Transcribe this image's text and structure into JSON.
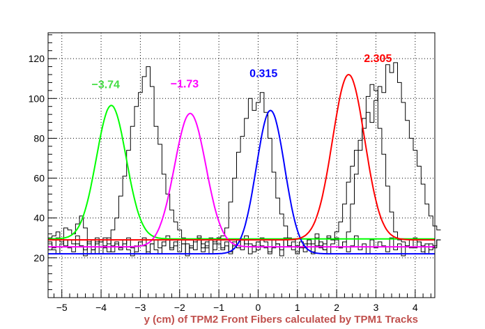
{
  "chart_data": {
    "type": "line",
    "title": "",
    "xlabel": "y (cm) of TPM2 Front Fibers calculated by TPM1 Tracks",
    "ylabel": "",
    "xlim": [
      -5.35,
      4.5
    ],
    "ylim": [
      0,
      133
    ],
    "grid": true,
    "x_ticks": [
      -5,
      -4,
      -3,
      -2,
      -1,
      0,
      1,
      2,
      3,
      4
    ],
    "y_ticks": [
      20,
      40,
      60,
      80,
      100,
      120
    ],
    "histogram": {
      "bin_start": -5.35,
      "bin_width": 0.1,
      "series": [
        {
          "color": "#000000",
          "values": [
            30,
            31,
            33,
            29,
            35,
            34,
            32,
            37,
            41,
            35,
            27,
            24,
            30,
            28,
            30,
            27,
            34,
            40,
            51,
            61,
            74,
            86,
            96,
            103,
            111,
            116,
            106,
            86,
            77,
            62,
            52,
            44,
            38,
            34,
            30,
            27,
            25,
            29,
            31,
            27,
            25,
            30,
            28,
            30,
            31,
            35,
            48,
            60,
            73,
            81,
            90,
            100,
            94,
            98,
            103,
            93,
            80,
            63,
            50,
            42,
            36,
            30,
            29,
            26,
            28,
            23,
            29,
            27,
            32,
            25,
            27,
            31,
            29,
            30,
            25,
            28,
            33,
            47,
            62,
            74,
            90,
            101,
            107,
            104,
            85,
            72,
            56,
            43,
            33,
            29,
            28,
            26,
            25,
            30,
            28,
            26,
            22,
            27,
            25,
            29
          ]
        },
        {
          "color": "#000000",
          "values": [
            27,
            25,
            30,
            28,
            26,
            29,
            27,
            31,
            26,
            24,
            28,
            22,
            27,
            29,
            25,
            23,
            26,
            28,
            24,
            27,
            30,
            25,
            23,
            28,
            26,
            22,
            27,
            29,
            25,
            28,
            31,
            24,
            26,
            29,
            27,
            22,
            25,
            28,
            30,
            23,
            26,
            29,
            24,
            27,
            25,
            28,
            22,
            26,
            29,
            24,
            31,
            27,
            23,
            28,
            26,
            25,
            22,
            29,
            27,
            24,
            30,
            26,
            28,
            23,
            25,
            27,
            29,
            22,
            26,
            28,
            24,
            30,
            29,
            33,
            38,
            47,
            58,
            66,
            74,
            79,
            85,
            93,
            88,
            99,
            106,
            103,
            117,
            113,
            118,
            108,
            98,
            89,
            80,
            74,
            66,
            57,
            47,
            41,
            36,
            34
          ]
        },
        {
          "color": "#000000",
          "values": [
            28,
            24,
            22,
            27,
            29,
            25,
            23,
            27,
            26,
            21,
            29,
            24,
            28,
            22,
            26,
            30,
            23,
            27,
            25,
            29,
            24,
            21,
            26,
            28,
            30,
            23,
            27,
            24,
            22,
            26,
            29,
            25,
            28,
            23,
            27,
            21,
            26,
            24,
            29,
            25,
            28,
            22,
            27,
            30,
            24,
            26,
            23,
            28,
            25,
            29,
            27,
            22,
            26,
            24,
            30,
            28,
            23,
            25,
            27,
            21,
            29,
            26,
            24,
            22,
            28,
            25,
            27,
            23,
            30,
            26,
            24,
            22,
            27,
            29,
            25,
            28,
            23,
            26,
            31,
            24,
            27,
            22,
            29,
            25,
            28,
            26,
            23,
            30,
            24,
            27,
            21,
            26,
            29,
            25,
            28,
            23,
            27,
            24,
            26,
            29
          ]
        }
      ]
    },
    "series": [
      {
        "color": "#00ff00",
        "amplitude": 67,
        "mean": -3.74,
        "sigma": 0.38,
        "baseline": 29.5
      },
      {
        "color": "#ff00ff",
        "amplitude": 67,
        "mean": -1.73,
        "sigma": 0.4,
        "baseline": 25.5
      },
      {
        "color": "#0000ff",
        "amplitude": 72,
        "mean": 0.315,
        "sigma": 0.36,
        "baseline": 22
      },
      {
        "color": "#ff0000",
        "amplitude": 83,
        "mean": 2.305,
        "sigma": 0.41,
        "baseline": 29
      }
    ],
    "annotations": [
      {
        "text": "−3.74",
        "color": "#44dd44"
      },
      {
        "text": "−1.73",
        "color": "#ff00ff"
      },
      {
        "text": "0.315",
        "color": "#0000ff"
      },
      {
        "text": "2.305",
        "color": "#ff0000"
      }
    ]
  }
}
